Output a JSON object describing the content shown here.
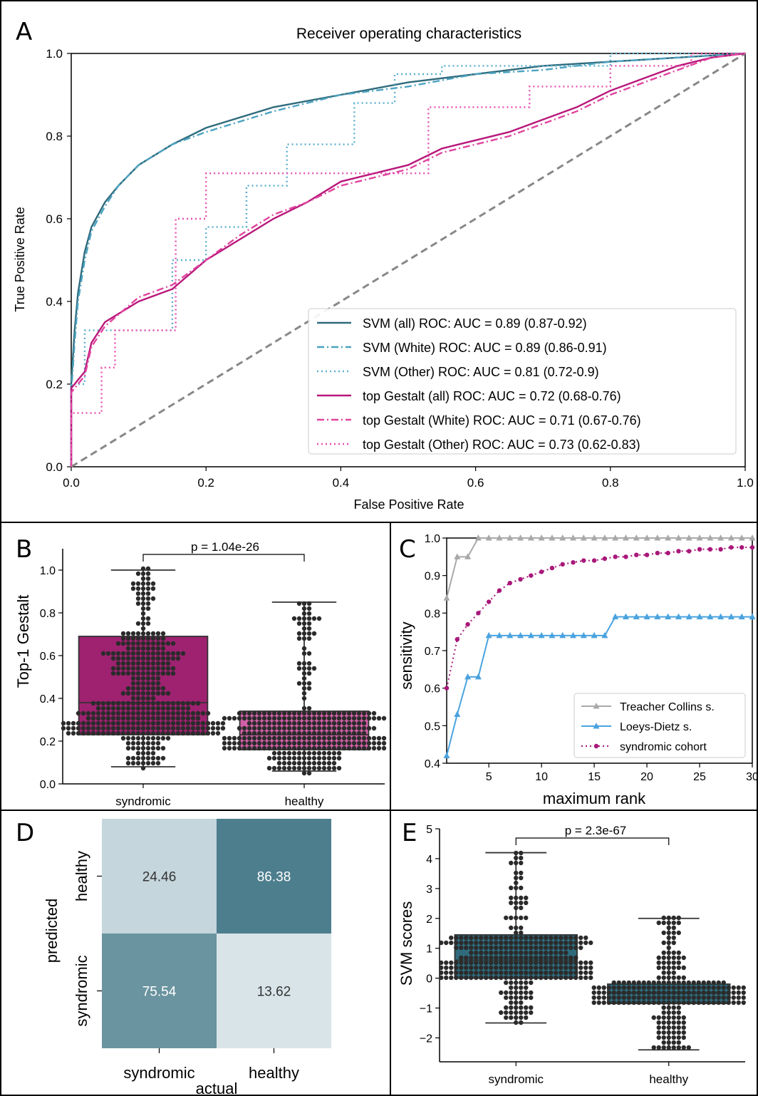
{
  "colors": {
    "svm_all": "#2f6b7c",
    "svm_white": "#4ca3c0",
    "svm_other": "#5aafcd",
    "gestalt_all": "#b8177a",
    "gestalt_white": "#e0449e",
    "gestalt_other": "#e84faf",
    "diag": "#888888",
    "box_B_syn": "#9e2270",
    "box_B_healthy": "#d260a8",
    "box_E": "#2f6b7c",
    "dots": "#2b2b2b",
    "tc": "#a9a9a9",
    "ld": "#4aa3df",
    "cohort": "#a8187a",
    "cm_light": "#c5d6dc",
    "cm_lighter": "#d8e4e8",
    "cm_dark": "#4d7e8e",
    "cm_mid": "#6a949f"
  },
  "panels": {
    "A": "A",
    "B": "B",
    "C": "C",
    "D": "D",
    "E": "E"
  },
  "chart_data": [
    {
      "panel": "A",
      "type": "line",
      "title": "Receiver operating characteristics",
      "xlabel": "False Positive Rate",
      "ylabel": "True Positive Rate",
      "xlim": [
        0,
        1
      ],
      "ylim": [
        0,
        1
      ],
      "xticks": [
        "0.0",
        "0.2",
        "0.4",
        "0.6",
        "0.8",
        "1.0"
      ],
      "yticks": [
        "0.0",
        "0.2",
        "0.4",
        "0.6",
        "0.8",
        "1.0"
      ],
      "legend_position": "lower-right",
      "series": [
        {
          "name": "SVM (all) ROC: AUC = 0.89 (0.87-0.92)",
          "style": "solid",
          "color": "#2f6b7c",
          "x": [
            0,
            0,
            0.005,
            0.01,
            0.02,
            0.03,
            0.05,
            0.07,
            0.1,
            0.15,
            0.2,
            0.3,
            0.4,
            0.5,
            0.6,
            0.7,
            0.8,
            0.9,
            1.0
          ],
          "y": [
            0,
            0.2,
            0.33,
            0.42,
            0.52,
            0.58,
            0.64,
            0.68,
            0.73,
            0.78,
            0.82,
            0.87,
            0.9,
            0.93,
            0.95,
            0.97,
            0.98,
            0.99,
            1.0
          ]
        },
        {
          "name": "SVM (White) ROC: AUC = 0.89 (0.86-0.91)",
          "style": "dashdot",
          "color": "#4ca3c0",
          "x": [
            0,
            0,
            0.005,
            0.01,
            0.02,
            0.03,
            0.05,
            0.07,
            0.1,
            0.15,
            0.2,
            0.3,
            0.4,
            0.5,
            0.6,
            0.7,
            0.8,
            0.9,
            1.0
          ],
          "y": [
            0,
            0.18,
            0.3,
            0.4,
            0.5,
            0.57,
            0.63,
            0.68,
            0.73,
            0.78,
            0.81,
            0.86,
            0.9,
            0.92,
            0.95,
            0.96,
            0.98,
            0.99,
            1.0
          ]
        },
        {
          "name": "SVM (Other) ROC: AUC = 0.81 (0.72-0.9)",
          "style": "dotted",
          "color": "#5aafcd",
          "x": [
            0,
            0,
            0.02,
            0.02,
            0.15,
            0.15,
            0.2,
            0.2,
            0.26,
            0.26,
            0.32,
            0.32,
            0.42,
            0.42,
            0.48,
            0.48,
            0.55,
            0.55,
            0.8,
            0.8,
            0.9,
            0.9,
            1.0
          ],
          "y": [
            0,
            0.2,
            0.2,
            0.33,
            0.33,
            0.5,
            0.5,
            0.58,
            0.58,
            0.68,
            0.68,
            0.78,
            0.78,
            0.88,
            0.88,
            0.95,
            0.95,
            0.97,
            0.97,
            1.0,
            1.0,
            1.0,
            1.0
          ]
        },
        {
          "name": "top Gestalt (all) ROC: AUC = 0.72 (0.68-0.76)",
          "style": "solid",
          "color": "#b8177a",
          "x": [
            0,
            0,
            0.02,
            0.03,
            0.05,
            0.1,
            0.15,
            0.2,
            0.25,
            0.3,
            0.35,
            0.4,
            0.45,
            0.5,
            0.55,
            0.6,
            0.65,
            0.7,
            0.75,
            0.8,
            0.85,
            0.9,
            0.95,
            1.0
          ],
          "y": [
            0,
            0.19,
            0.23,
            0.3,
            0.35,
            0.4,
            0.43,
            0.5,
            0.55,
            0.6,
            0.64,
            0.69,
            0.71,
            0.73,
            0.77,
            0.79,
            0.81,
            0.84,
            0.87,
            0.91,
            0.94,
            0.97,
            0.99,
            1.0
          ]
        },
        {
          "name": "top Gestalt (White) ROC: AUC = 0.71 (0.67-0.76)",
          "style": "dashdot",
          "color": "#e0449e",
          "x": [
            0,
            0,
            0.02,
            0.03,
            0.05,
            0.1,
            0.15,
            0.2,
            0.25,
            0.3,
            0.35,
            0.4,
            0.45,
            0.5,
            0.55,
            0.6,
            0.65,
            0.7,
            0.75,
            0.8,
            0.85,
            0.9,
            0.95,
            1.0
          ],
          "y": [
            0,
            0.18,
            0.22,
            0.29,
            0.34,
            0.41,
            0.44,
            0.5,
            0.56,
            0.61,
            0.64,
            0.68,
            0.7,
            0.72,
            0.76,
            0.78,
            0.8,
            0.83,
            0.86,
            0.9,
            0.93,
            0.96,
            0.99,
            1.0
          ]
        },
        {
          "name": "top Gestalt (Other) ROC: AUC = 0.73 (0.62-0.83)",
          "style": "dotted",
          "color": "#e84faf",
          "x": [
            0,
            0,
            0.045,
            0.045,
            0.065,
            0.065,
            0.155,
            0.155,
            0.18,
            0.18,
            0.2,
            0.2,
            0.29,
            0.29,
            0.34,
            0.34,
            0.39,
            0.39,
            0.53,
            0.53,
            0.68,
            0.68,
            0.8,
            0.8,
            0.92,
            0.92,
            1.0
          ],
          "y": [
            0,
            0.13,
            0.13,
            0.24,
            0.24,
            0.33,
            0.33,
            0.6,
            0.6,
            0.6,
            0.6,
            0.71,
            0.71,
            0.71,
            0.71,
            0.71,
            0.71,
            0.71,
            0.71,
            0.87,
            0.87,
            0.92,
            0.92,
            0.97,
            0.97,
            1.0,
            1.0
          ]
        }
      ]
    },
    {
      "panel": "B",
      "type": "box",
      "ylabel": "Top-1 Gestalt",
      "ylim": [
        0,
        1.1
      ],
      "yticks": [
        "0.0",
        "0.2",
        "0.4",
        "0.6",
        "0.8",
        "1.0"
      ],
      "categories": [
        "syndromic",
        "healthy"
      ],
      "boxes": [
        {
          "name": "syndromic",
          "min": 0.08,
          "q1": 0.23,
          "median": 0.38,
          "q3": 0.69,
          "max": 1.0
        },
        {
          "name": "healthy",
          "min": 0.06,
          "q1": 0.16,
          "median": 0.23,
          "q3": 0.34,
          "max": 0.85
        }
      ],
      "annotation": "p = 1.04e-26"
    },
    {
      "panel": "C",
      "type": "line",
      "xlabel": "maximum rank",
      "ylabel": "sensitivity",
      "xlim": [
        1,
        30
      ],
      "ylim": [
        0.4,
        1.0
      ],
      "xticks": [
        "5",
        "10",
        "15",
        "20",
        "25",
        "30"
      ],
      "yticks": [
        "0.4",
        "0.5",
        "0.6",
        "0.7",
        "0.8",
        "0.9",
        "1.0"
      ],
      "legend_position": "lower-right",
      "series": [
        {
          "name": "Treacher Collins s.",
          "color": "#a9a9a9",
          "marker": "triangle",
          "x": [
            1,
            2,
            3,
            4,
            5,
            6,
            7,
            8,
            9,
            10,
            11,
            12,
            13,
            14,
            15,
            16,
            17,
            18,
            19,
            20,
            21,
            22,
            23,
            24,
            25,
            26,
            27,
            28,
            29,
            30
          ],
          "y": [
            0.84,
            0.95,
            0.95,
            1,
            1,
            1,
            1,
            1,
            1,
            1,
            1,
            1,
            1,
            1,
            1,
            1,
            1,
            1,
            1,
            1,
            1,
            1,
            1,
            1,
            1,
            1,
            1,
            1,
            1,
            1
          ]
        },
        {
          "name": "Loeys-Dietz s.",
          "color": "#4aa3df",
          "marker": "triangle",
          "x": [
            1,
            2,
            3,
            4,
            5,
            6,
            7,
            8,
            9,
            10,
            11,
            12,
            13,
            14,
            15,
            16,
            17,
            18,
            19,
            20,
            21,
            22,
            23,
            24,
            25,
            26,
            27,
            28,
            29,
            30
          ],
          "y": [
            0.42,
            0.53,
            0.63,
            0.63,
            0.74,
            0.74,
            0.74,
            0.74,
            0.74,
            0.74,
            0.74,
            0.74,
            0.74,
            0.74,
            0.74,
            0.74,
            0.79,
            0.79,
            0.79,
            0.79,
            0.79,
            0.79,
            0.79,
            0.79,
            0.79,
            0.79,
            0.79,
            0.79,
            0.79,
            0.79
          ]
        },
        {
          "name": "syndromic cohort",
          "color": "#a8187a",
          "marker": "circle",
          "x": [
            1,
            2,
            3,
            4,
            5,
            6,
            7,
            8,
            9,
            10,
            11,
            12,
            13,
            14,
            15,
            16,
            17,
            18,
            19,
            20,
            21,
            22,
            23,
            24,
            25,
            26,
            27,
            28,
            29,
            30
          ],
          "y": [
            0.6,
            0.73,
            0.77,
            0.8,
            0.83,
            0.86,
            0.88,
            0.89,
            0.9,
            0.91,
            0.92,
            0.93,
            0.935,
            0.94,
            0.94,
            0.945,
            0.95,
            0.95,
            0.955,
            0.955,
            0.96,
            0.96,
            0.965,
            0.965,
            0.97,
            0.97,
            0.97,
            0.975,
            0.975,
            0.975
          ]
        }
      ]
    },
    {
      "panel": "D",
      "type": "heatmap",
      "xlabel": "actual",
      "ylabel": "predicted",
      "xcategories": [
        "syndromic",
        "healthy"
      ],
      "ycategories": [
        "healthy",
        "syndromic"
      ],
      "values": [
        [
          24.46,
          86.38
        ],
        [
          75.54,
          13.62
        ]
      ],
      "labels": [
        [
          "24.46",
          "86.38"
        ],
        [
          "75.54",
          "13.62"
        ]
      ]
    },
    {
      "panel": "E",
      "type": "box",
      "ylabel": "SVM scores",
      "ylim": [
        -2.8,
        5
      ],
      "yticks": [
        "−2",
        "−1",
        "0",
        "1",
        "2",
        "3",
        "4",
        "5"
      ],
      "categories": [
        "syndromic",
        "healthy"
      ],
      "boxes": [
        {
          "name": "syndromic",
          "min": -1.5,
          "q1": 0.0,
          "median": 0.6,
          "q3": 1.45,
          "max": 4.2
        },
        {
          "name": "healthy",
          "min": -2.4,
          "q1": -0.85,
          "median": -0.5,
          "q3": -0.2,
          "max": 2.0
        }
      ],
      "annotation": "p = 2.3e-67"
    }
  ]
}
